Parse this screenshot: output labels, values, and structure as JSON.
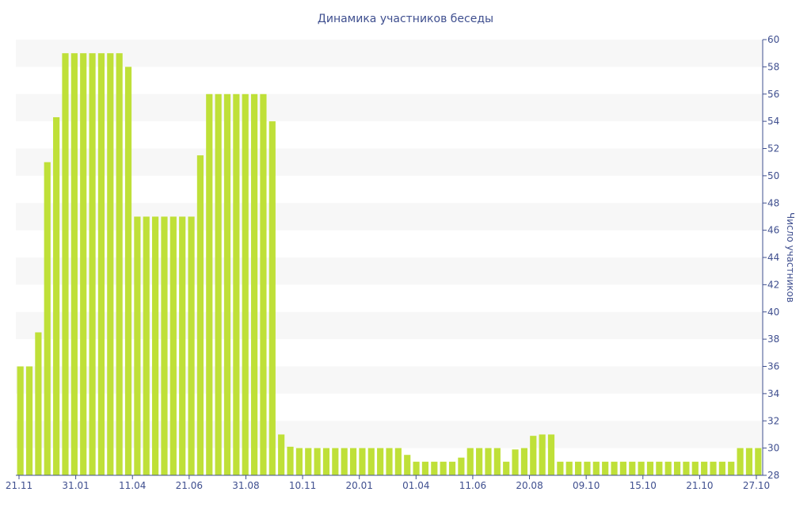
{
  "chart_data": {
    "type": "bar",
    "title": "Динамика участников беседы",
    "ylabel": "Число участников",
    "xlabel": "",
    "ylim": [
      28,
      60
    ],
    "y_ticks": [
      28,
      30,
      32,
      34,
      36,
      38,
      40,
      42,
      44,
      46,
      48,
      50,
      52,
      54,
      56,
      58,
      60
    ],
    "x_tick_labels": [
      "21.11",
      "31.01",
      "11.04",
      "21.06",
      "31.08",
      "10.11",
      "20.01",
      "01.04",
      "11.06",
      "20.08",
      "09.10",
      "15.10",
      "21.10",
      "27.10"
    ],
    "values": [
      36,
      36,
      38.5,
      51,
      54.3,
      59,
      59,
      59,
      59,
      59,
      59,
      59,
      58,
      47,
      47,
      47,
      47,
      47,
      47,
      47,
      51.5,
      56,
      56,
      56,
      56,
      56,
      56,
      56,
      54,
      31,
      30.1,
      30,
      30,
      30,
      30,
      30,
      30,
      30,
      30,
      30,
      30,
      30,
      30,
      29.5,
      29,
      29,
      29,
      29,
      29,
      29.3,
      30,
      30,
      30,
      30,
      29,
      29.9,
      30,
      30.9,
      31,
      31,
      29,
      29,
      29,
      29,
      29,
      29,
      29,
      29,
      29,
      29,
      29,
      29,
      29,
      29,
      29,
      29,
      29,
      29,
      29,
      29,
      30,
      30,
      30
    ],
    "colors": {
      "bar": "#bfe038",
      "stripe": "#f7f7f7",
      "axis": "#3f4f8f",
      "text": "#3f4f8f"
    },
    "grid": "alternating horizontal bands",
    "legend": "none"
  }
}
